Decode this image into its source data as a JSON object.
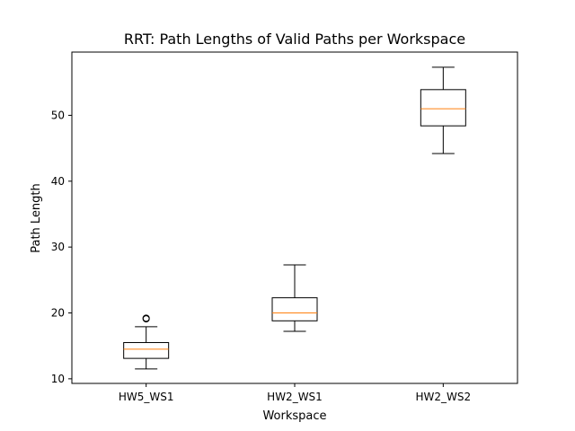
{
  "chart_data": {
    "type": "boxplot",
    "title": "RRT: Path Lengths of Valid Paths per Workspace",
    "xlabel": "Workspace",
    "ylabel": "Path Length",
    "ylim": [
      9.3,
      59.6
    ],
    "yticks": [
      10,
      20,
      30,
      40,
      50
    ],
    "grid": false,
    "categories": [
      "HW5_WS1",
      "HW2_WS1",
      "HW2_WS2"
    ],
    "boxes": [
      {
        "category": "HW5_WS1",
        "whisker_low": 11.5,
        "q1": 13.1,
        "median": 14.5,
        "q3": 15.5,
        "whisker_high": 17.9,
        "outliers": [
          19.1,
          19.2
        ]
      },
      {
        "category": "HW2_WS1",
        "whisker_low": 17.2,
        "q1": 18.8,
        "median": 20.0,
        "q3": 22.3,
        "whisker_high": 27.3,
        "outliers": []
      },
      {
        "category": "HW2_WS2",
        "whisker_low": 44.2,
        "q1": 48.4,
        "median": 51.0,
        "q3": 53.9,
        "whisker_high": 57.3,
        "outliers": []
      }
    ],
    "colors": {
      "box": "#000000",
      "median": "#ff7f0e",
      "outlier": "#000000"
    }
  }
}
